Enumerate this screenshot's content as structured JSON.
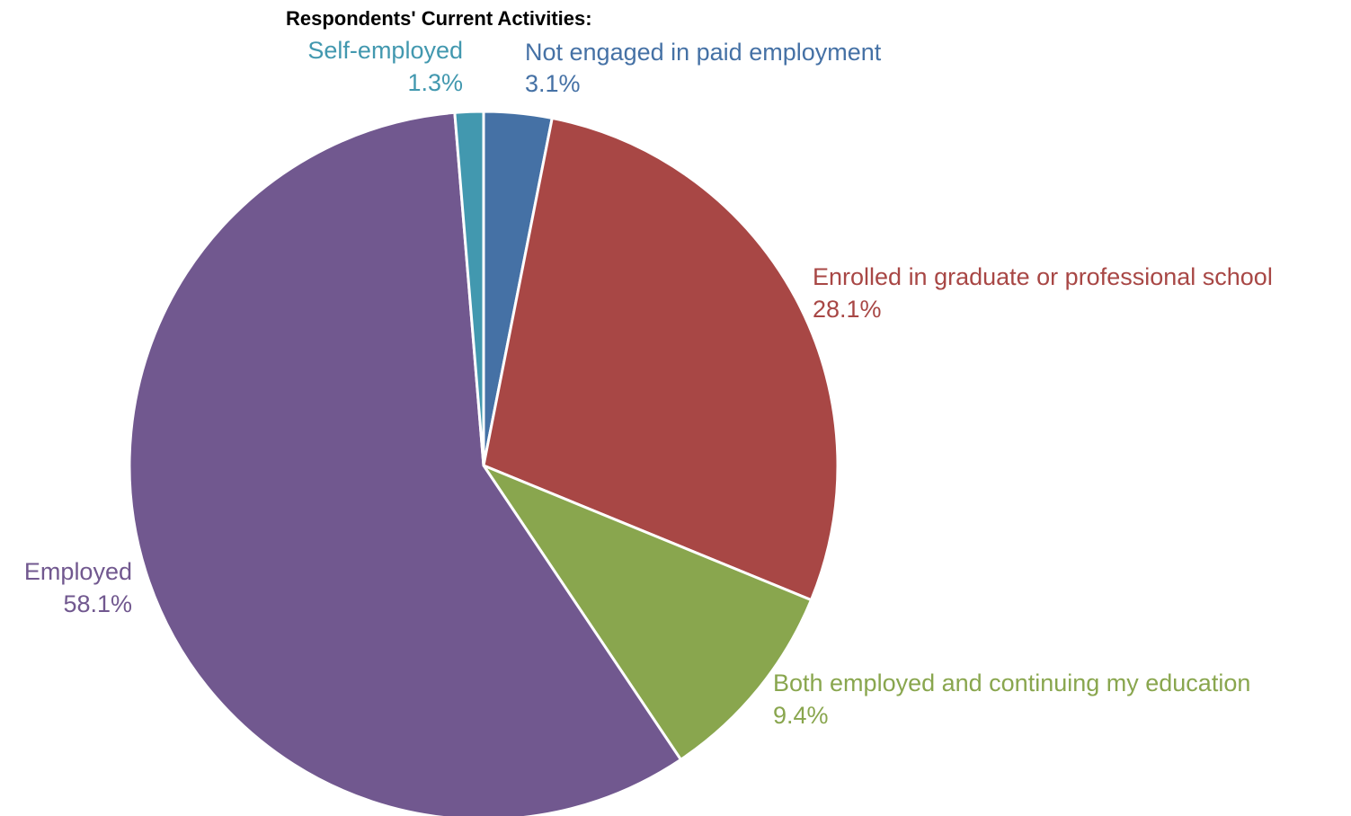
{
  "chart_data": {
    "type": "pie",
    "title": "Respondents' Current Activities:",
    "slices": [
      {
        "name": "Not engaged in paid employment",
        "value": 3.1,
        "label": "3.1%",
        "color": "#4571a5"
      },
      {
        "name": "Enrolled in graduate or professional school",
        "value": 28.1,
        "label": "28.1%",
        "color": "#a84745"
      },
      {
        "name": "Both employed and continuing my education",
        "value": 9.4,
        "label": "9.4%",
        "color": "#89a64e"
      },
      {
        "name": "Employed",
        "value": 58.1,
        "label": "58.1%",
        "color": "#71588f"
      },
      {
        "name": "Self-employed",
        "value": 1.3,
        "label": "1.3%",
        "color": "#4298af"
      }
    ],
    "start_angle": "12 o'clock",
    "direction": "clockwise",
    "legend": "none",
    "slice_border_color": "#ffffff"
  }
}
